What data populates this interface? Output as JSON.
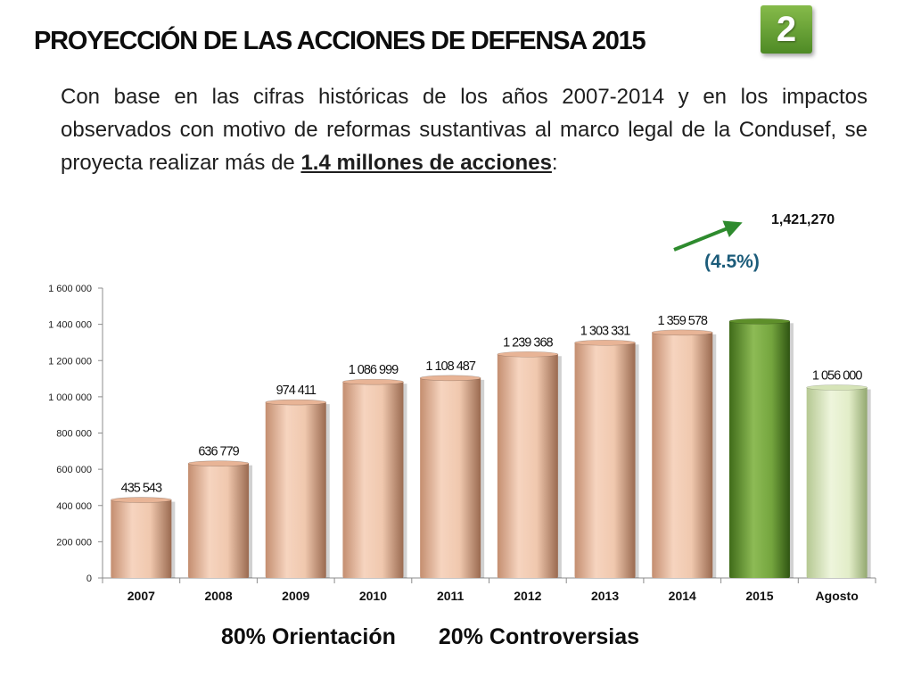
{
  "header": {
    "title": "PROYECCIÓN DE LAS ACCIONES DE DEFENSA 2015",
    "badge": "2"
  },
  "intro": {
    "text_before": "Con base en las cifras históricas de los años 2007-2014 y en los impactos observados con motivo de reformas sustantivas al marco legal de la Condusef, se proyecta realizar más de ",
    "highlight": "1.4 millones de acciones",
    "text_after": ":"
  },
  "projection": {
    "value_label": "1,421,270",
    "growth_label": "(4.5%)",
    "arrow_color": "#2e8b2e"
  },
  "colors": {
    "bar_default": "#e8b496",
    "bar_projection": "#5e8f2a",
    "bar_partial": "#d6e4b8"
  },
  "chart_data": {
    "type": "bar",
    "categories": [
      "2007",
      "2008",
      "2009",
      "2010",
      "2011",
      "2012",
      "2013",
      "2014",
      "2015",
      "Agosto"
    ],
    "values": [
      435543,
      636779,
      974411,
      1086999,
      1108487,
      1239368,
      1303331,
      1359578,
      1421270,
      1056000
    ],
    "data_labels": [
      "435 543",
      "636 779",
      "974 411",
      "1 086 999",
      "1 108 487",
      "1 239 368",
      "1 303 331",
      "1 359 578",
      "",
      "1 056 000"
    ],
    "bar_styles": [
      "default",
      "default",
      "default",
      "default",
      "default",
      "default",
      "default",
      "default",
      "projection",
      "partial"
    ],
    "ylim": [
      0,
      1600000
    ],
    "yticks": [
      0,
      200000,
      400000,
      600000,
      800000,
      1000000,
      1200000,
      1400000,
      1600000
    ],
    "ytick_labels": [
      "0",
      "200 000",
      "400 000",
      "600 000",
      "800 000",
      "1 000 000",
      "1 200 000",
      "1 400 000",
      "1 600 000"
    ],
    "title": "",
    "xlabel": "",
    "ylabel": "",
    "grid": false,
    "legend": "none"
  },
  "footer": {
    "orientation": "80% Orientación",
    "controversies": "20% Controversias"
  }
}
